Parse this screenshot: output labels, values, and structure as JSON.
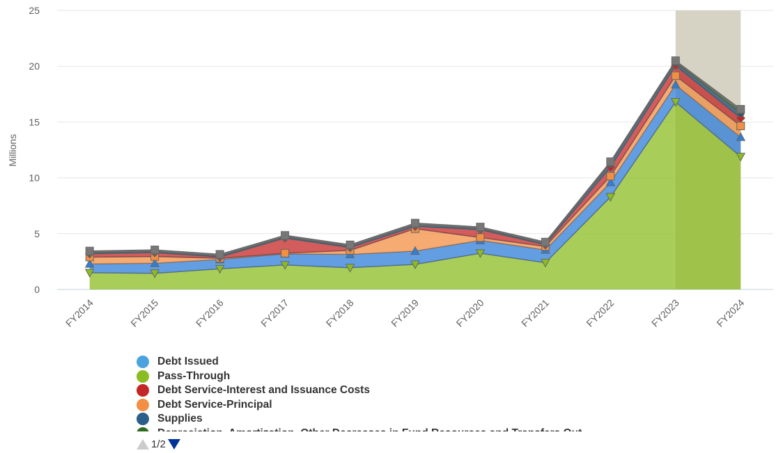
{
  "chart_data": {
    "type": "area",
    "stacked": true,
    "ylabel": "Millions",
    "ylim": [
      0,
      25
    ],
    "yticks": [
      0,
      5,
      10,
      15,
      20,
      25
    ],
    "grid": true,
    "categories": [
      "FY2014",
      "FY2015",
      "FY2016",
      "FY2017",
      "FY2018",
      "FY2019",
      "FY2020",
      "FY2021",
      "FY2022",
      "FY2023",
      "FY2024"
    ],
    "highlighted_category": "FY2023",
    "series": [
      {
        "name": "Pass-Through",
        "color": "#8bbc21",
        "values": [
          1.5,
          1.45,
          1.85,
          2.2,
          1.95,
          2.25,
          3.25,
          2.4,
          8.3,
          16.8,
          11.9
        ]
      },
      {
        "name": "Debt Issued",
        "color": "#2f7ed8",
        "values": [
          0.8,
          0.9,
          0.85,
          1.0,
          1.2,
          1.2,
          1.15,
          1.15,
          1.3,
          1.55,
          1.75
        ]
      },
      {
        "name": "Debt Service-Principal",
        "color": "#f28f43",
        "values": [
          0.6,
          0.6,
          0.1,
          0.05,
          0.35,
          2.0,
          0.25,
          0.3,
          0.55,
          0.8,
          1.0
        ]
      },
      {
        "name": "Debt Service-Interest and Issuance Costs",
        "color": "#c42525",
        "values": [
          0.3,
          0.35,
          0.1,
          1.35,
          0.25,
          0.2,
          0.7,
          0.15,
          0.8,
          0.9,
          0.7
        ]
      },
      {
        "name": "Supplies",
        "color": "#1f4e79",
        "values": [
          0.1,
          0.1,
          0.1,
          0.1,
          0.1,
          0.15,
          0.1,
          0.1,
          0.3,
          0.25,
          0.45
        ]
      },
      {
        "name": "Depreciation, Amortization, Other Decreases in Fund Resources and Transfers Out",
        "color": "#2e6b1f",
        "values": [
          0.05,
          0.05,
          0.05,
          0.05,
          0.05,
          0.05,
          0.05,
          0.05,
          0.1,
          0.1,
          0.2
        ]
      },
      {
        "name": "",
        "color": "#777777",
        "values": [
          0.1,
          0.1,
          0.1,
          0.1,
          0.1,
          0.1,
          0.1,
          0.1,
          0.1,
          0.1,
          0.15
        ]
      }
    ]
  },
  "legend": {
    "items": [
      {
        "label": "Debt Issued",
        "color": "#4aa3df"
      },
      {
        "label": "Pass-Through",
        "color": "#8bbc21"
      },
      {
        "label": "Debt Service-Interest and Issuance Costs",
        "color": "#c42525"
      },
      {
        "label": "Debt Service-Principal",
        "color": "#f28f43"
      },
      {
        "label": "Supplies",
        "color": "#2a5f8a"
      },
      {
        "label": "Depreciation, Amortization, Other Decreases in Fund Resources and Transfers Out",
        "color": "#2e6b1f"
      }
    ],
    "pager": {
      "text": "1/2",
      "up_icon": "arrow-up-icon",
      "down_icon": "arrow-down-icon"
    }
  }
}
